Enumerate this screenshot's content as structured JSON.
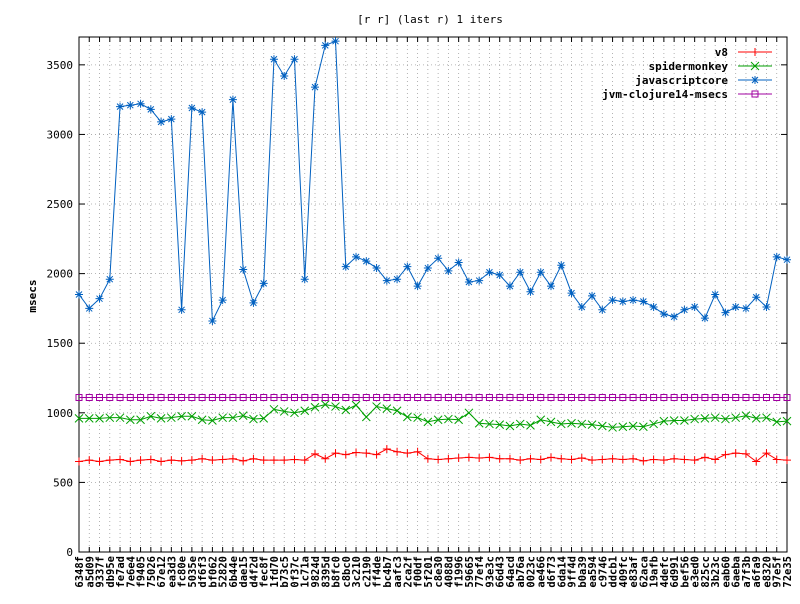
{
  "chart_data": {
    "type": "line",
    "title": "[r r] (last r) 1 iters",
    "xlabel": "",
    "ylabel": "msecs",
    "ylim": [
      0,
      3700
    ],
    "yticks": [
      0,
      500,
      1000,
      1500,
      2000,
      2500,
      3000,
      3500
    ],
    "grid": true,
    "legend_position": "top-right",
    "categories": [
      "6348f",
      "a5d09",
      "9337f",
      "db95e",
      "fe7ad",
      "7e6e4",
      "f9405",
      "75026",
      "67e12",
      "ea3d3",
      "fc80e",
      "5035e",
      "df6f3",
      "bf062",
      "52820",
      "6b44e",
      "dae15",
      "d4f2d",
      "fec8f",
      "1fd70",
      "b73c5",
      "0f37c",
      "1c71a",
      "9824d",
      "8395d",
      "b8fc0",
      "c8bc0",
      "3c210",
      "c2190",
      "ff4de",
      "bc4b7",
      "aafc3",
      "2ca2f",
      "f00df",
      "5f201",
      "c8e30",
      "4088d",
      "f1996",
      "59665",
      "77ef4",
      "93e3c",
      "66d43",
      "64acd",
      "ab76a",
      "0023c",
      "ae466",
      "d6f73",
      "6da14",
      "9ff4d",
      "b0a39",
      "ea594",
      "c9746",
      "ddcb1",
      "409fc",
      "e83af",
      "62aca",
      "19afb",
      "4defc",
      "6d991",
      "bef56",
      "e3ed0",
      "825cc",
      "3b23c",
      "eab60",
      "6aeba",
      "a7f3b",
      "a6fa9",
      "e8320",
      "97e5f",
      "72e35"
    ],
    "series": [
      {
        "name": "v8",
        "color": "#ff0000",
        "marker": "plus",
        "values": [
          650,
          660,
          650,
          660,
          665,
          650,
          660,
          665,
          650,
          660,
          655,
          660,
          670,
          660,
          665,
          670,
          655,
          670,
          660,
          660,
          660,
          665,
          660,
          705,
          670,
          710,
          700,
          715,
          710,
          700,
          740,
          720,
          710,
          720,
          670,
          665,
          670,
          675,
          680,
          675,
          680,
          670,
          670,
          660,
          670,
          665,
          680,
          670,
          665,
          675,
          660,
          665,
          670,
          665,
          670,
          655,
          665,
          660,
          670,
          665,
          660,
          680,
          665,
          700,
          710,
          705,
          650,
          710,
          665,
          660
        ]
      },
      {
        "name": "spidermonkey",
        "color": "#00a000",
        "marker": "cross",
        "values": [
          960,
          960,
          960,
          965,
          965,
          950,
          950,
          975,
          960,
          965,
          975,
          975,
          950,
          945,
          965,
          965,
          980,
          955,
          960,
          1025,
          1010,
          1000,
          1015,
          1040,
          1060,
          1045,
          1020,
          1055,
          970,
          1045,
          1030,
          1015,
          970,
          965,
          935,
          950,
          955,
          950,
          1000,
          925,
          920,
          915,
          905,
          920,
          910,
          950,
          935,
          920,
          925,
          920,
          915,
          905,
          895,
          900,
          905,
          900,
          920,
          940,
          945,
          945,
          955,
          960,
          965,
          955,
          965,
          980,
          960,
          965,
          935,
          940
        ]
      },
      {
        "name": "javascriptcore",
        "color": "#0060c0",
        "marker": "star",
        "values": [
          1850,
          1750,
          1820,
          1960,
          3200,
          3210,
          3220,
          3180,
          3090,
          3110,
          1740,
          3190,
          3160,
          1660,
          1810,
          3250,
          2030,
          1790,
          1930,
          3540,
          3420,
          3540,
          1960,
          3340,
          3640,
          3670,
          2050,
          2120,
          2090,
          2040,
          1950,
          1960,
          2050,
          1910,
          2040,
          2110,
          2020,
          2080,
          1940,
          1950,
          2010,
          1990,
          1910,
          2010,
          1870,
          2010,
          1910,
          2060,
          1860,
          1760,
          1840,
          1740,
          1810,
          1800,
          1810,
          1800,
          1760,
          1710,
          1690,
          1740,
          1760,
          1680,
          1850,
          1720,
          1760,
          1750,
          1830,
          1760,
          2120,
          2100
        ]
      },
      {
        "name": "jvm-clojure14-msecs",
        "color": "#a000a0",
        "marker": "square",
        "values": [
          1110,
          1110,
          1110,
          1110,
          1110,
          1110,
          1110,
          1110,
          1110,
          1110,
          1110,
          1110,
          1110,
          1110,
          1110,
          1110,
          1110,
          1110,
          1110,
          1110,
          1110,
          1110,
          1110,
          1110,
          1110,
          1110,
          1110,
          1110,
          1110,
          1110,
          1110,
          1110,
          1110,
          1110,
          1110,
          1110,
          1110,
          1110,
          1110,
          1110,
          1110,
          1110,
          1110,
          1110,
          1110,
          1110,
          1110,
          1110,
          1110,
          1110,
          1110,
          1110,
          1110,
          1110,
          1110,
          1110,
          1110,
          1110,
          1110,
          1110,
          1110,
          1110,
          1110,
          1110,
          1110,
          1110,
          1110,
          1110,
          1110,
          1110
        ]
      }
    ]
  }
}
